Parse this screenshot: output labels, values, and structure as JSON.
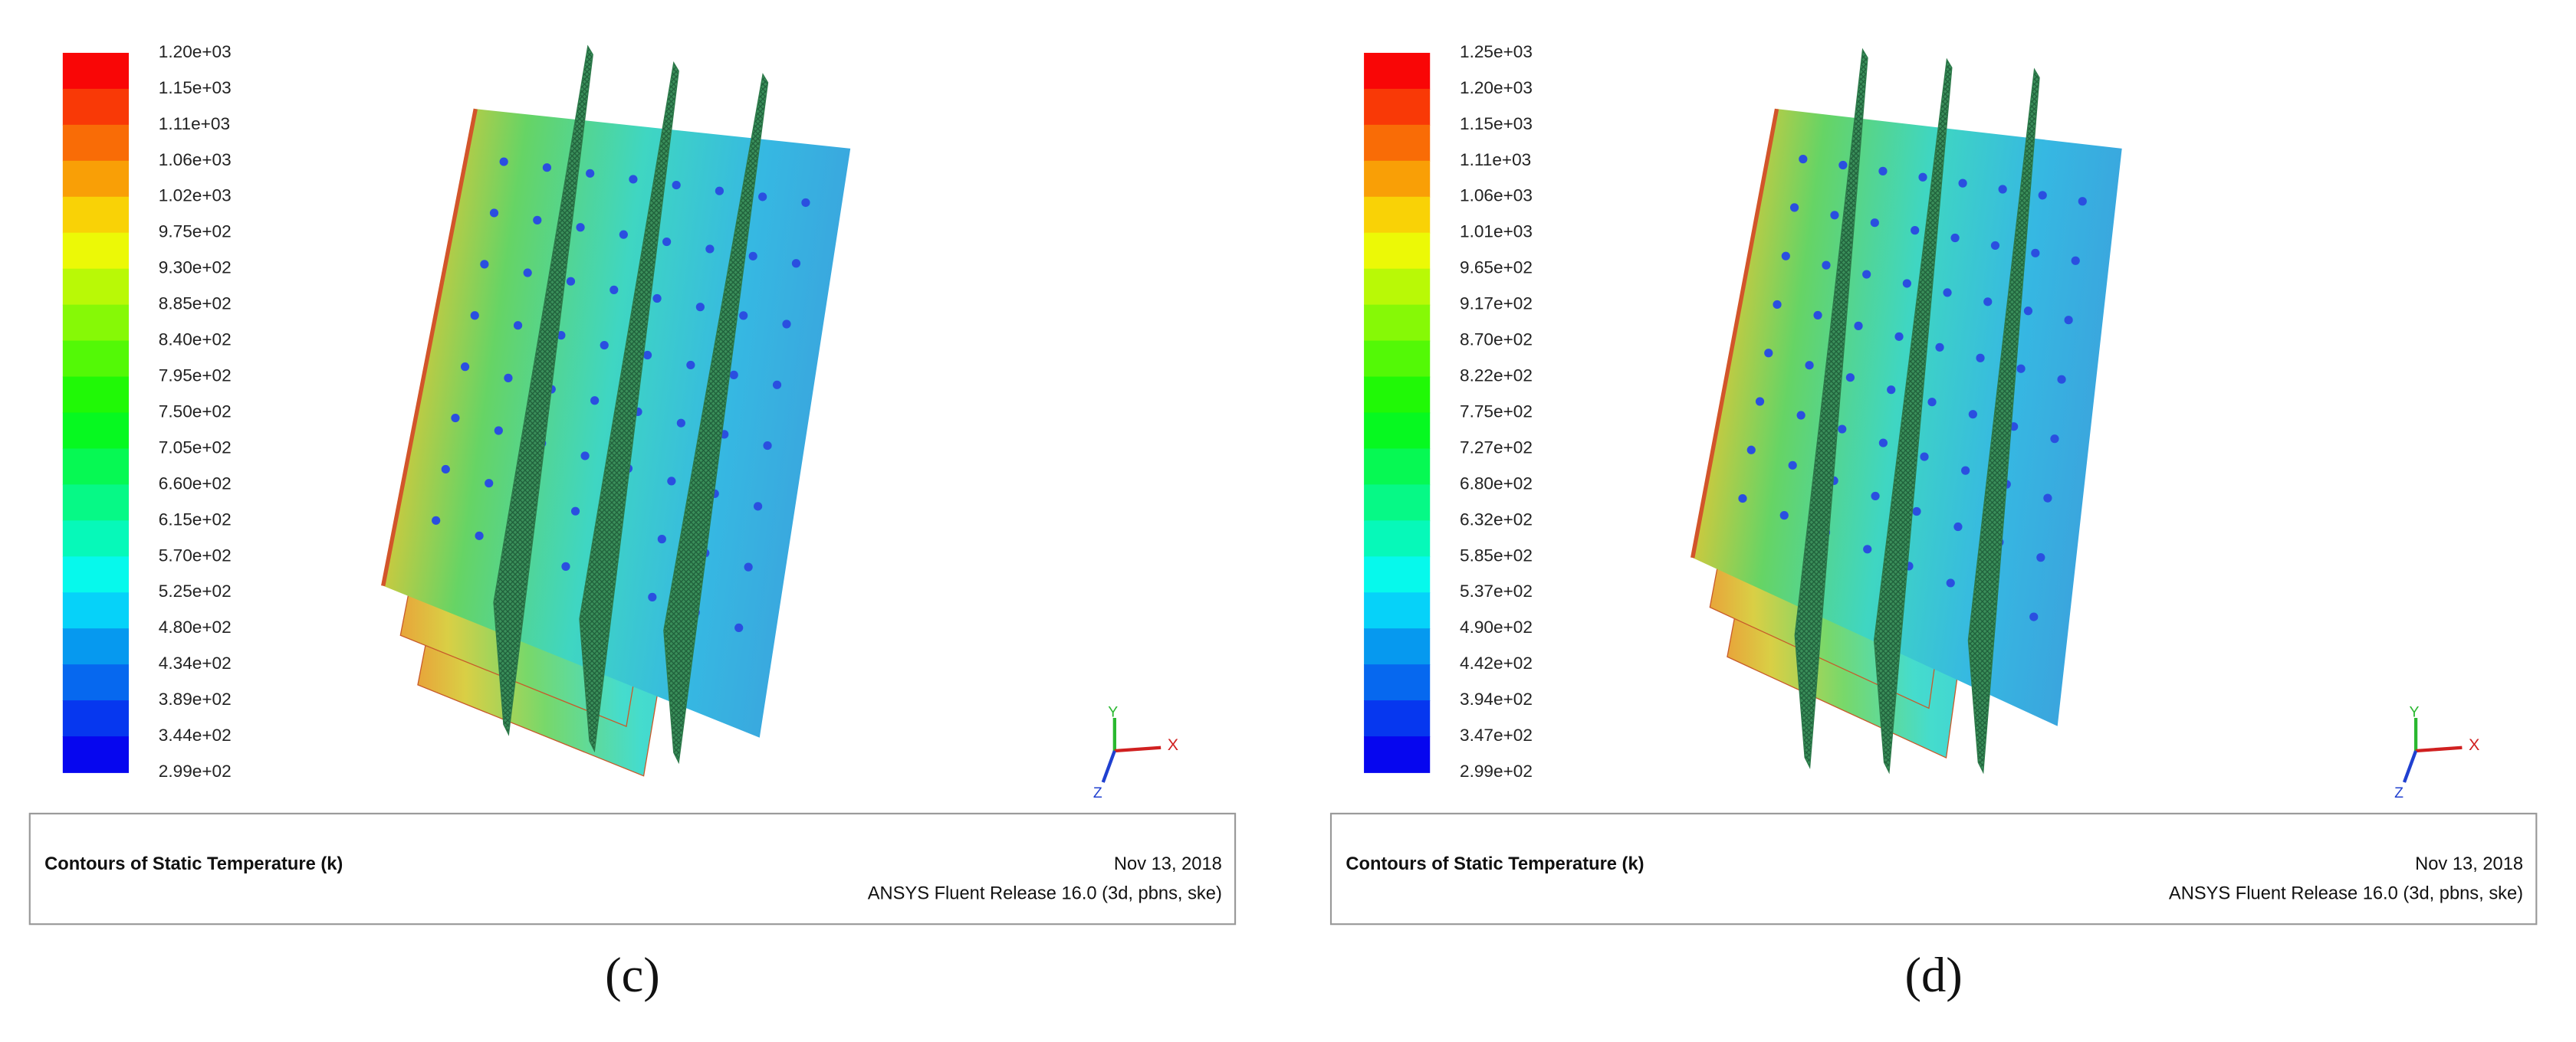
{
  "panels": [
    {
      "label": "(c)",
      "colorbar_labels": [
        "1.20e+03",
        "1.15e+03",
        "1.11e+03",
        "1.06e+03",
        "1.02e+03",
        "9.75e+02",
        "9.30e+02",
        "8.85e+02",
        "8.40e+02",
        "7.95e+02",
        "7.50e+02",
        "7.05e+02",
        "6.60e+02",
        "6.15e+02",
        "5.70e+02",
        "5.25e+02",
        "4.80e+02",
        "4.34e+02",
        "3.89e+02",
        "3.44e+02",
        "2.99e+02"
      ],
      "caption": "Contours of Static Temperature (k)",
      "date": "Nov 13, 2018",
      "release": "ANSYS Fluent Release 16.0 (3d, pbns, ske)",
      "axes": {
        "x": "X",
        "y": "Y",
        "z": "Z"
      }
    },
    {
      "label": "(d)",
      "colorbar_labels": [
        "1.25e+03",
        "1.20e+03",
        "1.15e+03",
        "1.11e+03",
        "1.06e+03",
        "1.01e+03",
        "9.65e+02",
        "9.17e+02",
        "8.70e+02",
        "8.22e+02",
        "7.75e+02",
        "7.27e+02",
        "6.80e+02",
        "6.32e+02",
        "5.85e+02",
        "5.37e+02",
        "4.90e+02",
        "4.42e+02",
        "3.94e+02",
        "3.47e+02",
        "2.99e+02"
      ],
      "caption": "Contours of Static Temperature (k)",
      "date": "Nov 13, 2018",
      "release": "ANSYS Fluent Release 16.0 (3d, pbns, ske)",
      "axes": {
        "x": "X",
        "y": "Y",
        "z": "Z"
      }
    }
  ]
}
